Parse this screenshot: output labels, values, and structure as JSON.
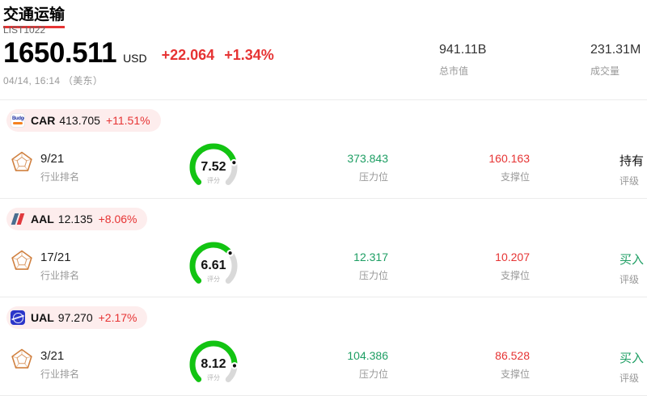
{
  "header": {
    "title": "交通运输",
    "subtitle": "LIST1022",
    "price": "1650.511",
    "currency": "USD",
    "change": "+22.064",
    "change_pct": "+1.34%",
    "datetime": "04/14, 16:14 （美东）",
    "market_cap": {
      "value": "941.11B",
      "label": "总市值"
    },
    "volume": {
      "value": "231.31M",
      "label": "成交量"
    }
  },
  "labels": {
    "rank": "行业排名",
    "score": "评分",
    "resistance": "压力位",
    "support": "支撑位",
    "rating": "评级"
  },
  "colors": {
    "accent_red": "#e63333",
    "green_text": "#1d9e63",
    "gauge_green": "#12c412",
    "gauge_track": "#d9d9d9",
    "pill_bg": "#fdeded"
  },
  "stocks": [
    {
      "logo": "budget-logo",
      "ticker": "CAR",
      "price": "413.705",
      "change_pct": "+11.51%",
      "rank": "9/21",
      "score": "7.52",
      "score_value": 7.52,
      "resistance": "373.843",
      "support": "160.163",
      "rating": "持有",
      "rating_type": "hold"
    },
    {
      "logo": "aal-logo",
      "ticker": "AAL",
      "price": "12.135",
      "change_pct": "+8.06%",
      "rank": "17/21",
      "score": "6.61",
      "score_value": 6.61,
      "resistance": "12.317",
      "support": "10.207",
      "rating": "买入",
      "rating_type": "buy"
    },
    {
      "logo": "ual-logo",
      "ticker": "UAL",
      "price": "97.270",
      "change_pct": "+2.17%",
      "rank": "3/21",
      "score": "8.12",
      "score_value": 8.12,
      "resistance": "104.386",
      "support": "86.528",
      "rating": "买入",
      "rating_type": "buy"
    }
  ]
}
